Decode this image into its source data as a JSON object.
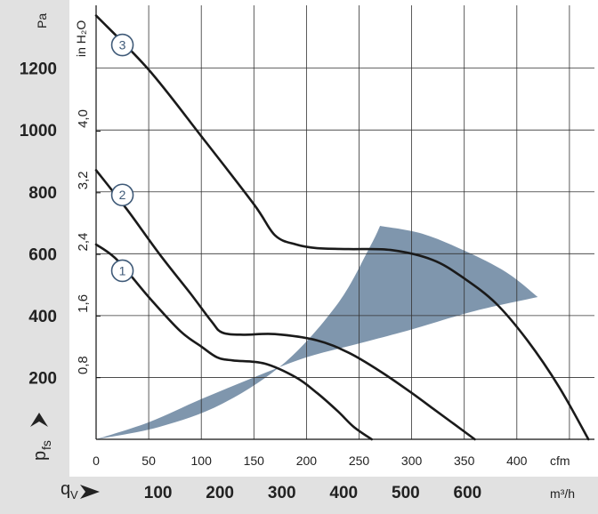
{
  "chart_data": {
    "type": "line",
    "title": "",
    "axes": {
      "left_pa": {
        "label": "Pa",
        "ticks": [
          200,
          400,
          600,
          800,
          1000,
          1200
        ],
        "range": [
          0,
          1400
        ]
      },
      "left_inh2o": {
        "label": "in H₂O",
        "ticks": [
          "0,8",
          "1,6",
          "2,4",
          "3,2",
          "4,0"
        ],
        "tick_values_pa": [
          199.3,
          398.5,
          597.8,
          797.0,
          996.3
        ]
      },
      "bottom_cfm": {
        "label": "cfm",
        "ticks": [
          0,
          50,
          100,
          150,
          200,
          250,
          300,
          350,
          400
        ],
        "range": [
          0,
          470
        ]
      },
      "bottom_m3h": {
        "label": "m³/h",
        "ticks": [
          100,
          200,
          300,
          400,
          500,
          600
        ],
        "tick_values_cfm": [
          58.9,
          117.7,
          176.6,
          235.4,
          294.3,
          353.1
        ]
      },
      "y_symbol": "p",
      "y_symbol_sub": "fs",
      "x_symbol": "q",
      "x_symbol_sub": "V"
    },
    "grid": true,
    "x_unit": "cfm",
    "y_unit": "Pa",
    "series": [
      {
        "name": "1",
        "x": [
          0,
          20,
          50,
          80,
          100,
          115,
          130,
          160,
          190,
          210,
          230,
          245,
          262
        ],
        "y": [
          630,
          580,
          460,
          350,
          300,
          265,
          255,
          245,
          200,
          150,
          90,
          40,
          0
        ]
      },
      {
        "name": "2",
        "x": [
          0,
          30,
          60,
          90,
          110,
          120,
          140,
          170,
          210,
          240,
          270,
          300,
          320,
          340,
          360
        ],
        "y": [
          870,
          740,
          600,
          470,
          380,
          345,
          338,
          340,
          320,
          280,
          220,
          150,
          100,
          50,
          0
        ]
      },
      {
        "name": "3",
        "x": [
          0,
          50,
          100,
          150,
          170,
          190,
          210,
          240,
          280,
          320,
          350,
          380,
          410,
          440,
          468
        ],
        "y": [
          1370,
          1195,
          980,
          760,
          660,
          630,
          618,
          615,
          612,
          580,
          520,
          440,
          320,
          170,
          0
        ]
      }
    ],
    "labels": [
      {
        "text": "1",
        "x": 25,
        "y": 545
      },
      {
        "text": "2",
        "x": 25,
        "y": 790
      },
      {
        "text": "3",
        "x": 25,
        "y": 1275
      }
    ],
    "operating_area": {
      "upper": {
        "x": [
          0,
          60,
          120,
          180,
          230,
          260,
          270
        ],
        "y": [
          0,
          40,
          115,
          250,
          440,
          620,
          690
        ]
      },
      "right": {
        "x": [
          270,
          310,
          350,
          390,
          420
        ],
        "y": [
          690,
          665,
          610,
          540,
          460
        ]
      },
      "lower": {
        "x": [
          420,
          360,
          300,
          250,
          200,
          150,
          100,
          50,
          0
        ],
        "y": [
          460,
          415,
          355,
          310,
          265,
          200,
          130,
          55,
          0
        ]
      },
      "color": "#7f96ad"
    },
    "colors": {
      "curve": "#1a1a1a",
      "grid": "#333333",
      "panel_left": "#e1e1e1",
      "panel_bottom": "#e1e1e1",
      "marker": "#3f5a78"
    }
  }
}
